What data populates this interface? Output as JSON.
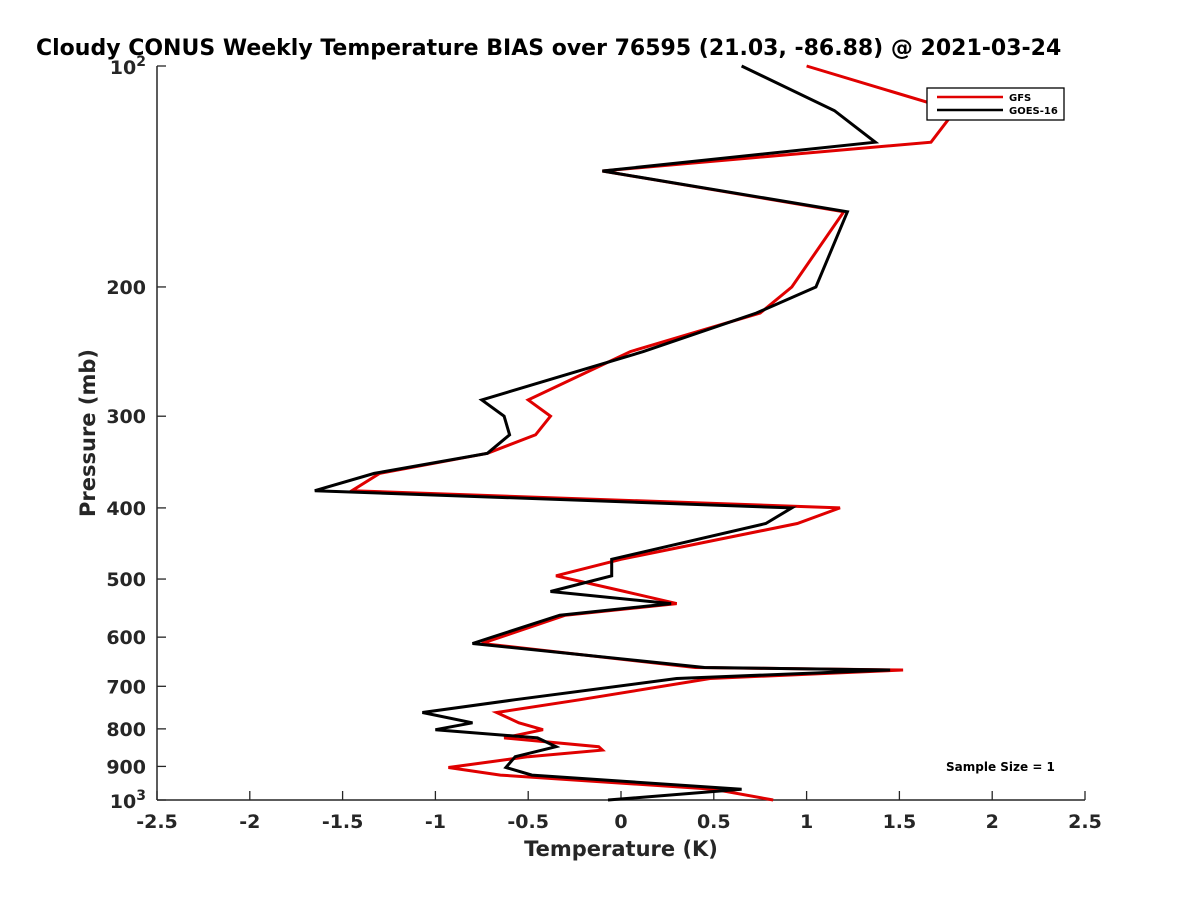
{
  "chart_data": {
    "type": "line",
    "title": "Cloudy CONUS Weekly Temperature BIAS over 76595 (21.03, -86.88) @ 2021-03-24",
    "xlabel": "Temperature (K)",
    "ylabel": "Pressure (mb)",
    "xlim": [
      -2.5,
      2.5
    ],
    "ylim": [
      100,
      1000
    ],
    "yscale": "log",
    "y_reversed": true,
    "grid": false,
    "x_ticks": [
      -2.5,
      -2,
      -1.5,
      -1,
      -0.5,
      0,
      0.5,
      1,
      1.5,
      2,
      2.5
    ],
    "x_tick_labels": [
      "-2.5",
      "-2",
      "-1.5",
      "-1",
      "-0.5",
      "0",
      "0.5",
      "1",
      "1.5",
      "2",
      "2.5"
    ],
    "y_ticks_plain": [
      {
        "value": 200,
        "label": "200"
      },
      {
        "value": 300,
        "label": "300"
      },
      {
        "value": 400,
        "label": "400"
      },
      {
        "value": 500,
        "label": "500"
      },
      {
        "value": 600,
        "label": "600"
      },
      {
        "value": 700,
        "label": "700"
      },
      {
        "value": 800,
        "label": "800"
      },
      {
        "value": 900,
        "label": "900"
      }
    ],
    "y_ticks_power": [
      {
        "value": 100,
        "base": "10",
        "exp": "2"
      },
      {
        "value": 1000,
        "base": "10",
        "exp": "3"
      }
    ],
    "legend": {
      "position": "top-right",
      "entries": [
        {
          "name": "GFS",
          "color": "#e00000"
        },
        {
          "name": "GOES-16",
          "color": "#000000"
        }
      ]
    },
    "annotation": "Sample Size = 1",
    "series": [
      {
        "name": "GFS",
        "color": "#e00000",
        "points": [
          [
            1.0,
            100
          ],
          [
            1.8,
            115
          ],
          [
            1.67,
            127
          ],
          [
            -0.1,
            139
          ],
          [
            1.2,
            158
          ],
          [
            0.92,
            200
          ],
          [
            0.75,
            217
          ],
          [
            0.05,
            245
          ],
          [
            -0.5,
            285
          ],
          [
            -0.38,
            300
          ],
          [
            -0.46,
            318
          ],
          [
            -0.72,
            337
          ],
          [
            -1.3,
            359
          ],
          [
            -1.45,
            379
          ],
          [
            1.18,
            400
          ],
          [
            0.95,
            420
          ],
          [
            0.0,
            470
          ],
          [
            -0.35,
            495
          ],
          [
            0.02,
            520
          ],
          [
            0.3,
            540
          ],
          [
            -0.3,
            560
          ],
          [
            -0.75,
            612
          ],
          [
            0.4,
            660
          ],
          [
            1.52,
            665
          ],
          [
            0.48,
            683
          ],
          [
            -0.22,
            730
          ],
          [
            -0.67,
            760
          ],
          [
            -0.55,
            785
          ],
          [
            -0.42,
            802
          ],
          [
            -0.63,
            823
          ],
          [
            -0.12,
            846
          ],
          [
            -0.1,
            855
          ],
          [
            -0.5,
            873
          ],
          [
            -0.93,
            903
          ],
          [
            -0.65,
            925
          ],
          [
            0.5,
            967
          ],
          [
            0.82,
            1000
          ]
        ]
      },
      {
        "name": "GOES-16",
        "color": "#000000",
        "points": [
          [
            0.65,
            100
          ],
          [
            1.15,
            115
          ],
          [
            1.37,
            127
          ],
          [
            -0.1,
            139
          ],
          [
            1.22,
            158
          ],
          [
            1.05,
            200
          ],
          [
            0.73,
            217
          ],
          [
            0.12,
            245
          ],
          [
            -0.75,
            285
          ],
          [
            -0.63,
            300
          ],
          [
            -0.6,
            318
          ],
          [
            -0.72,
            337
          ],
          [
            -1.33,
            359
          ],
          [
            -1.65,
            379
          ],
          [
            0.92,
            400
          ],
          [
            0.78,
            420
          ],
          [
            -0.05,
            470
          ],
          [
            -0.05,
            495
          ],
          [
            -0.38,
            520
          ],
          [
            0.27,
            540
          ],
          [
            -0.33,
            560
          ],
          [
            -0.8,
            612
          ],
          [
            0.45,
            660
          ],
          [
            1.45,
            665
          ],
          [
            0.3,
            683
          ],
          [
            -0.57,
            730
          ],
          [
            -1.07,
            760
          ],
          [
            -0.8,
            785
          ],
          [
            -1.0,
            802
          ],
          [
            -0.45,
            823
          ],
          [
            -0.35,
            846
          ],
          [
            -0.57,
            873
          ],
          [
            -0.62,
            903
          ],
          [
            -0.48,
            925
          ],
          [
            0.65,
            967
          ],
          [
            -0.07,
            1000
          ]
        ]
      }
    ]
  }
}
